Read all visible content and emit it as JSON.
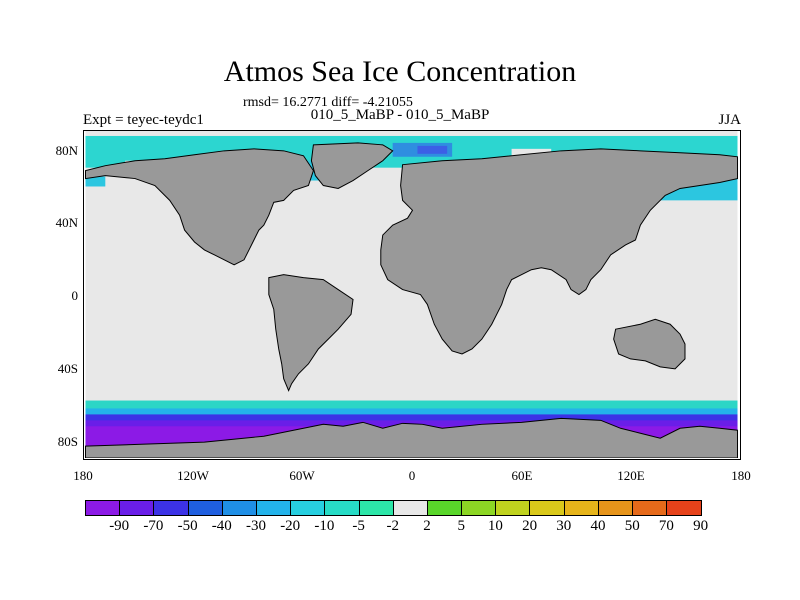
{
  "title": "Atmos Sea Ice Concentration",
  "stats": "rmsd= 16.2771 diff= -4.21055",
  "subtitle": "010_5_MaBP - 010_5_MaBP",
  "expt": "Expt = teyec-teydc1",
  "season": "JJA",
  "y_axis": [
    "80N",
    "40N",
    "0",
    "40S",
    "80S"
  ],
  "x_axis": [
    "180",
    "120W",
    "60W",
    "0",
    "60E",
    "120E",
    "180"
  ],
  "colorbar": {
    "labels": [
      "-90",
      "-70",
      "-50",
      "-40",
      "-30",
      "-20",
      "-10",
      "-5",
      "-2",
      "2",
      "5",
      "10",
      "20",
      "30",
      "40",
      "50",
      "70",
      "90"
    ],
    "colors": [
      "#8c1ae6",
      "#6a1ee8",
      "#3c32e6",
      "#1f5fe0",
      "#1f8fe6",
      "#23b3ea",
      "#27cfe0",
      "#27dcc6",
      "#2ce6a8",
      "#e8e8e8",
      "#59d62a",
      "#8cd624",
      "#bfd21e",
      "#d9c81a",
      "#e6b41a",
      "#e6941a",
      "#e66a1a",
      "#e6421a"
    ]
  },
  "map_colors": {
    "ocean": "#e8e8e8",
    "land": "#999999",
    "coast": "#000000"
  }
}
